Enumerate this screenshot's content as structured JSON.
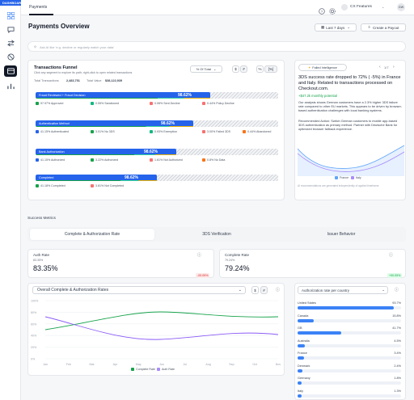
{
  "colors": {
    "blue": "#2563eb",
    "green": "#16a34a",
    "teal": "#10b981",
    "yellow": "#eab308",
    "orange": "#f97316",
    "red": "#f87171",
    "purple": "#8b5cf6",
    "gray": "#9ca3af"
  },
  "sidebar": {
    "badge": "DASHBOARD",
    "icons": [
      "grid-icon",
      "chat-icon",
      "transfer-icon",
      "ban-icon",
      "payments-icon",
      "chart-icon"
    ]
  },
  "topbar": {
    "tab": "Payments",
    "features_label": "CX Features",
    "avatar": "GW"
  },
  "header": {
    "title": "Payments Overview",
    "range": "Last 7 days",
    "create_payout": "Create a Payout"
  },
  "ask": {
    "placeholder": "Ask AI like 'e.g. decline or regularly watch your data'"
  },
  "funnel": {
    "title": "Transactions Funnel",
    "subtitle": "Click any segment to explore its path; right-click to open related transactions",
    "mode": "% Of Total",
    "toggle": [
      "$",
      "#"
    ],
    "toggle2": [
      "%",
      "[%]"
    ],
    "total_transactions_label": "Total Transactions",
    "total_transactions": "2,483,751",
    "total_value_label": "Total Value",
    "total_value": "$38,122,939",
    "stages": [
      {
        "name": "Fraud Reviewed + Fraud Decision",
        "pct": "98.62%",
        "fill": 0.72,
        "items": [
          {
            "label": "97.97% Approved",
            "c": "green"
          },
          {
            "label": "0.55% Sanctioned",
            "c": "teal"
          },
          {
            "label": "0.08% Sent Decline",
            "c": "red"
          },
          {
            "label": "0.44% Policy Decline",
            "c": "red"
          }
        ]
      },
      {
        "name": "Authentication Method",
        "pct": "98.62%",
        "fill": 0.65,
        "items": [
          {
            "label": "41.15% Authenticated",
            "c": "blue"
          },
          {
            "label": "3.01% No 3DS",
            "c": "green"
          },
          {
            "label": "0.93% Exemption",
            "c": "teal"
          },
          {
            "label": "3.00% Failed 3DS",
            "c": "red"
          },
          {
            "label": "0.44% Abandoned",
            "c": "orange"
          }
        ]
      },
      {
        "name": "Bank Authorization",
        "pct": "98.62%",
        "fill": 0.58,
        "items": [
          {
            "label": "41.15% Authorized",
            "c": "blue"
          },
          {
            "label": "3.22% Authorized",
            "c": "green"
          },
          {
            "label": "1.61% Not Authorized",
            "c": "red"
          },
          {
            "label": "0.8% No Data",
            "c": "orange"
          }
        ]
      },
      {
        "name": "Completed",
        "pct": "98.62%",
        "fill": 0.5,
        "items": [
          {
            "label": "41.18% Completed",
            "c": "green"
          },
          {
            "label": "3.81% Not Completed",
            "c": "red"
          }
        ]
      }
    ]
  },
  "intel": {
    "title": "Failed Intelligence",
    "pager": "1/7",
    "headline": "3DS success rate dropped to 72% ( -5%) in France and Italy. Related to transactions processed on Checkout.com.",
    "potential": "+$47.2k monthly potential",
    "analysis": "Our analysis shows German customers have a 2.3% higher 3DS failure rate compared to other EU markets. This appears to be driven by browser-based authentication challenges with local banking systems.",
    "action": "Recommended Action: Switch German customers to mobile app-based 3DS authentication as primary method. Partner with Deutsche Bank for optimized browser fallback experience.",
    "legend": [
      "France",
      "Italy"
    ],
    "footer": "AI recommendations are generated independently of applied timeframe"
  },
  "success": {
    "title": "Success Metrics",
    "tabs": [
      "Complete & Authorization Rate",
      "3DS Verification",
      "Issuer Behavior"
    ]
  },
  "auth_rate": {
    "label": "Auth Rate",
    "sub": "83.35%",
    "value": "83.35%",
    "delta": "-00.05%"
  },
  "complete_rate": {
    "label": "Complete Rate",
    "sub": "79.24%",
    "value": "79.24%",
    "delta": "+00.05%"
  },
  "rates_chart": {
    "title": "Overall Complete & Authorization Rates",
    "toggle": [
      "$",
      "#"
    ],
    "y_ticks": [
      "100%",
      "80%",
      "60%",
      "40%",
      "20%",
      "0%"
    ],
    "x_ticks": [
      "Jan",
      "Feb",
      "Mar",
      "Apr",
      "May",
      "Jun",
      "Jul",
      "Aug",
      "Sep",
      "Oct",
      "Nov"
    ],
    "legend": [
      "Complete Rate",
      "Auth Rate"
    ]
  },
  "country": {
    "title": "Authorization rate per country",
    "rows": [
      {
        "name": "United States",
        "val": "93.7%",
        "f": 0.93
      },
      {
        "name": "Canada",
        "val": "15.8%",
        "f": 0.16
      },
      {
        "name": "GB",
        "val": "41.7%",
        "f": 0.42
      },
      {
        "name": "Australia",
        "val": "4.5%",
        "f": 0.07
      },
      {
        "name": "France",
        "val": "3.4%",
        "f": 0.06
      },
      {
        "name": "Denmark",
        "val": "2.4%",
        "f": 0.05
      },
      {
        "name": "Germany",
        "val": "1.8%",
        "f": 0.04
      },
      {
        "name": "Italy",
        "val": "1.3%",
        "f": 0.04
      }
    ]
  }
}
